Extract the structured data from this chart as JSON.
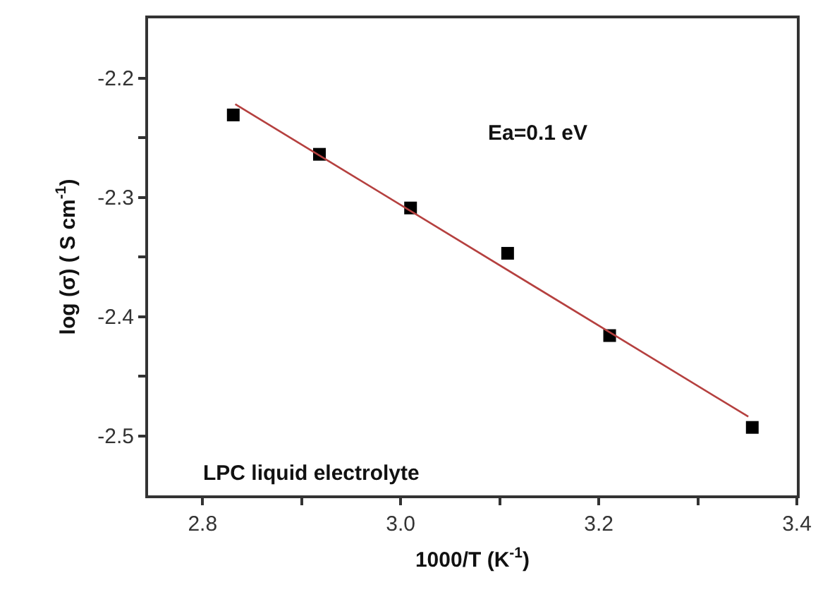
{
  "chart_data": {
    "type": "scatter",
    "xlabel": "1000/T (K$^{-1}$)",
    "ylabel": "log (σ) ( S cm$^{-1}$)",
    "xlim": [
      2.745,
      3.4
    ],
    "xticks": [
      2.8,
      {
        "value": 2.9,
        "label": null
      },
      "3.0",
      {
        "value": 3.1,
        "label": null
      },
      3.2,
      {
        "value": 3.3,
        "label": null
      },
      3.4
    ],
    "ylim": [
      -2.55,
      -2.15
    ],
    "yticks": [
      -2.2,
      {
        "value": -2.25,
        "label": null
      },
      -2.3,
      {
        "value": -2.35,
        "label": null
      },
      -2.4,
      {
        "value": -2.45,
        "label": null
      },
      -2.5
    ],
    "grid": false,
    "series": [
      {
        "marker": "square",
        "color": "#000000",
        "x": [
          2.831,
          2.918,
          3.01,
          3.108,
          3.211,
          3.355
        ],
        "values": [
          -2.231,
          -2.264,
          -2.309,
          -2.347,
          -2.416,
          -2.493
        ]
      },
      {
        "type": "line",
        "marker": "none",
        "line_style": "solid",
        "color": "#b5403f",
        "x": [
          2.833,
          3.351
        ],
        "values": [
          -2.222,
          -2.484
        ]
      }
    ],
    "annotations": [
      "Ea=0.1 eV",
      "LPC liquid electrolyte"
    ]
  }
}
